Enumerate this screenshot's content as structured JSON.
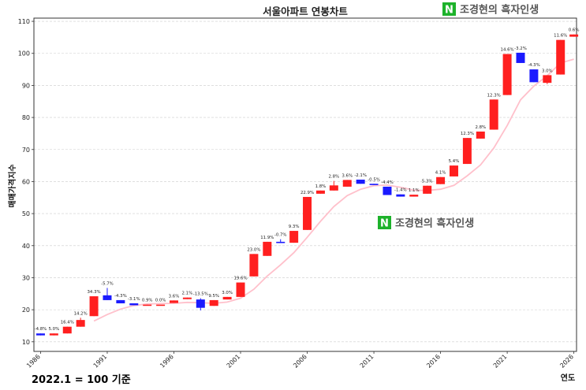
{
  "chart_data": {
    "type": "candlestick",
    "title": "서울아파트 연봉차트",
    "xlabel": "연도",
    "ylabel": "매매가격지수",
    "footnote": "2022.1 = 100 기준",
    "watermark": "조경현의 흑자인생",
    "watermark_logo_letter": "N",
    "xlim": [
      1985.5,
      2026.2
    ],
    "ylim": [
      7,
      111
    ],
    "x_ticks": [
      1986,
      1991,
      1996,
      2001,
      2006,
      2011,
      2016,
      2021,
      2026
    ],
    "y_ticks": [
      10,
      20,
      30,
      40,
      50,
      60,
      70,
      80,
      90,
      100,
      110
    ],
    "grid": true,
    "colors": {
      "up": "#ff1f1f",
      "down": "#1a1aff",
      "ma": "#ffc0cb",
      "grid": "#cccccc"
    },
    "candles": [
      {
        "year": 1986,
        "open": 12.6,
        "close": 12.0,
        "high": 12.6,
        "low": 12.0,
        "label": "-4.8%"
      },
      {
        "year": 1987,
        "open": 12.0,
        "close": 12.6,
        "high": 12.6,
        "low": 12.0,
        "label": "5.0%"
      },
      {
        "year": 1988,
        "open": 12.6,
        "close": 14.7,
        "high": 14.7,
        "low": 12.6,
        "label": "16.4%"
      },
      {
        "year": 1989,
        "open": 14.7,
        "close": 16.8,
        "high": 17.5,
        "low": 14.7,
        "label": "14.2%"
      },
      {
        "year": 1990,
        "open": 18.0,
        "close": 24.2,
        "high": 24.2,
        "low": 18.0,
        "label": "34.3%"
      },
      {
        "year": 1991,
        "open": 24.5,
        "close": 23.0,
        "high": 26.8,
        "low": 23.0,
        "label": "-5.7%"
      },
      {
        "year": 1992,
        "open": 23.0,
        "close": 22.0,
        "high": 23.0,
        "low": 22.0,
        "label": "-4.3%"
      },
      {
        "year": 1993,
        "open": 22.0,
        "close": 21.4,
        "high": 22.0,
        "low": 21.4,
        "label": "-3.1%"
      },
      {
        "year": 1994,
        "open": 21.4,
        "close": 21.6,
        "high": 21.6,
        "low": 21.4,
        "label": "0.9%"
      },
      {
        "year": 1995,
        "open": 21.6,
        "close": 21.6,
        "high": 21.6,
        "low": 21.6,
        "label": "0.0%"
      },
      {
        "year": 1996,
        "open": 22.1,
        "close": 22.9,
        "high": 22.9,
        "low": 22.1,
        "label": "3.6%"
      },
      {
        "year": 1997,
        "open": 23.3,
        "close": 23.8,
        "high": 23.8,
        "low": 23.3,
        "label": "2.1%"
      },
      {
        "year": 1998,
        "open": 23.2,
        "close": 20.6,
        "high": 23.6,
        "low": 19.8,
        "label": "-13.5%"
      },
      {
        "year": 1999,
        "open": 21.2,
        "close": 23.0,
        "high": 23.0,
        "low": 21.2,
        "label": "9.5%"
      },
      {
        "year": 2000,
        "open": 23.2,
        "close": 24.0,
        "high": 24.0,
        "low": 23.2,
        "label": "3.0%"
      },
      {
        "year": 2001,
        "open": 24.0,
        "close": 28.5,
        "high": 28.5,
        "low": 24.0,
        "label": "19.6%"
      },
      {
        "year": 2002,
        "open": 30.4,
        "close": 37.4,
        "high": 37.4,
        "low": 30.4,
        "label": "23.0%"
      },
      {
        "year": 2003,
        "open": 36.8,
        "close": 41.2,
        "high": 41.2,
        "low": 36.8,
        "label": "11.9%"
      },
      {
        "year": 2004,
        "open": 41.2,
        "close": 40.9,
        "high": 42.0,
        "low": 40.9,
        "label": "-0.7%"
      },
      {
        "year": 2005,
        "open": 40.9,
        "close": 44.6,
        "high": 44.6,
        "low": 40.9,
        "label": "9.3%"
      },
      {
        "year": 2006,
        "open": 44.9,
        "close": 55.2,
        "high": 55.2,
        "low": 44.9,
        "label": "22.9%"
      },
      {
        "year": 2007,
        "open": 56.2,
        "close": 57.2,
        "high": 57.2,
        "low": 56.2,
        "label": "1.8%"
      },
      {
        "year": 2008,
        "open": 57.2,
        "close": 58.8,
        "high": 60.2,
        "low": 57.2,
        "label": "2.8%"
      },
      {
        "year": 2009,
        "open": 58.4,
        "close": 60.5,
        "high": 60.5,
        "low": 58.4,
        "label": "3.6%"
      },
      {
        "year": 2010,
        "open": 60.6,
        "close": 59.3,
        "high": 60.6,
        "low": 59.3,
        "label": "-2.1%"
      },
      {
        "year": 2011,
        "open": 59.3,
        "close": 59.0,
        "high": 59.3,
        "low": 59.0,
        "label": "-0.5%"
      },
      {
        "year": 2012,
        "open": 58.4,
        "close": 55.8,
        "high": 58.4,
        "low": 55.8,
        "label": "-4.4%"
      },
      {
        "year": 2013,
        "open": 56.0,
        "close": 55.3,
        "high": 56.0,
        "low": 55.3,
        "label": "-1.4%"
      },
      {
        "year": 2014,
        "open": 55.3,
        "close": 55.9,
        "high": 55.9,
        "low": 55.3,
        "label": "1.1%"
      },
      {
        "year": 2015,
        "open": 56.2,
        "close": 58.7,
        "high": 58.7,
        "low": 56.2,
        "label": "5.3%"
      },
      {
        "year": 2016,
        "open": 59.2,
        "close": 61.4,
        "high": 61.4,
        "low": 59.2,
        "label": "4.1%"
      },
      {
        "year": 2017,
        "open": 61.6,
        "close": 65.0,
        "high": 65.0,
        "low": 61.6,
        "label": "5.4%"
      },
      {
        "year": 2018,
        "open": 65.5,
        "close": 73.6,
        "high": 73.6,
        "low": 65.5,
        "label": "12.3%"
      },
      {
        "year": 2019,
        "open": 73.4,
        "close": 75.6,
        "high": 75.6,
        "low": 73.4,
        "label": "2.8%"
      },
      {
        "year": 2020,
        "open": 76.2,
        "close": 85.6,
        "high": 85.6,
        "low": 76.2,
        "label": "12.3%"
      },
      {
        "year": 2021,
        "open": 87.0,
        "close": 99.8,
        "high": 99.8,
        "low": 87.0,
        "label": "14.6%"
      },
      {
        "year": 2022,
        "open": 100.2,
        "close": 97.0,
        "high": 100.2,
        "low": 97.0,
        "label": "-3.2%"
      },
      {
        "year": 2023,
        "open": 95.0,
        "close": 91.0,
        "high": 95.0,
        "low": 91.0,
        "label": "-4.3%"
      },
      {
        "year": 2024,
        "open": 90.8,
        "close": 93.2,
        "high": 93.2,
        "low": 90.4,
        "label": "3.0%"
      },
      {
        "year": 2025,
        "open": 93.4,
        "close": 104.2,
        "high": 104.2,
        "low": 93.4,
        "label": "11.6%"
      },
      {
        "year": 2026,
        "open": 105.2,
        "close": 105.9,
        "high": 105.9,
        "low": 105.2,
        "label": "0.6%"
      }
    ],
    "moving_average": {
      "x": [
        1990,
        1991,
        1992,
        1993,
        1994,
        1995,
        1996,
        1997,
        1998,
        1999,
        2000,
        2001,
        2002,
        2003,
        2004,
        2005,
        2006,
        2007,
        2008,
        2009,
        2010,
        2011,
        2012,
        2013,
        2014,
        2015,
        2016,
        2017,
        2018,
        2019,
        2020,
        2021,
        2022,
        2023,
        2024,
        2025,
        2026
      ],
      "y": [
        16.5,
        18.5,
        20.2,
        21.3,
        21.8,
        21.9,
        22.0,
        22.3,
        22.2,
        22.0,
        22.4,
        23.6,
        26.4,
        30.5,
        34.0,
        37.8,
        42.6,
        47.6,
        52.2,
        55.6,
        57.6,
        58.7,
        58.9,
        58.2,
        57.3,
        57.2,
        57.6,
        58.8,
        61.8,
        65.2,
        70.5,
        77.5,
        85.5,
        89.8,
        93.0,
        97.0,
        98.2
      ]
    }
  }
}
